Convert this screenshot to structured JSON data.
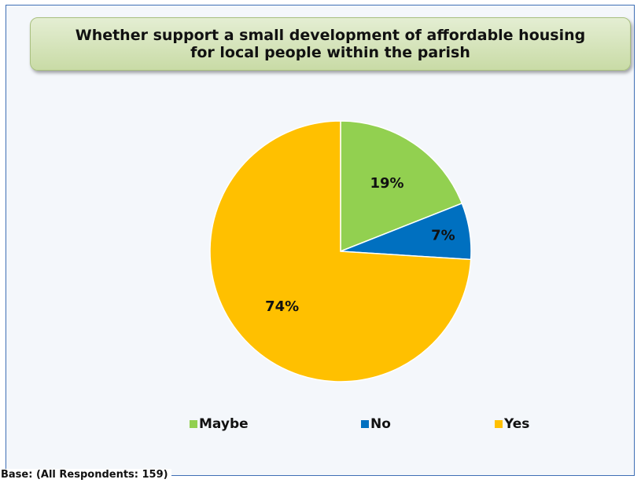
{
  "chart_data": {
    "type": "pie",
    "title": "Whether support a small development of affordable housing for local people within the parish",
    "slices": [
      {
        "label": "Maybe",
        "value": 19,
        "display": "19%",
        "color": "#92d050"
      },
      {
        "label": "No",
        "value": 7,
        "display": "7%",
        "color": "#0070c0"
      },
      {
        "label": "Yes",
        "value": 74,
        "display": "74%",
        "color": "#ffc000"
      }
    ],
    "legend_position": "bottom",
    "footnote": "Base: (All Respondents: 159)"
  }
}
